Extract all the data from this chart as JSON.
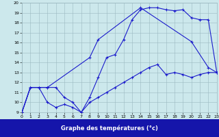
{
  "xlabel": "Graphe des températures (°c)",
  "bg_color": "#cce8ec",
  "grid_color": "#9ab8c0",
  "line_color": "#1a1acc",
  "label_bg": "#1515aa",
  "label_fg": "#ffffff",
  "xlim": [
    0,
    23
  ],
  "ylim": [
    9,
    20
  ],
  "xticks": [
    0,
    1,
    2,
    3,
    4,
    5,
    6,
    7,
    8,
    9,
    10,
    11,
    12,
    13,
    14,
    15,
    16,
    17,
    18,
    19,
    20,
    21,
    22,
    23
  ],
  "yticks": [
    9,
    10,
    11,
    12,
    13,
    14,
    15,
    16,
    17,
    18,
    19,
    20
  ],
  "series1_x": [
    0,
    1,
    2,
    3,
    4,
    5,
    6,
    7,
    8,
    9,
    10,
    11,
    12,
    13,
    14,
    15,
    16,
    17,
    18,
    19,
    20,
    21,
    22,
    23
  ],
  "series1_y": [
    9.0,
    11.5,
    11.5,
    10.0,
    9.5,
    9.8,
    9.5,
    9.0,
    10.0,
    10.5,
    11.0,
    11.5,
    12.0,
    12.5,
    13.0,
    13.5,
    13.8,
    12.8,
    13.0,
    12.8,
    12.5,
    12.8,
    13.0,
    13.0
  ],
  "series2_x": [
    0,
    1,
    2,
    3,
    4,
    5,
    6,
    7,
    8,
    9,
    10,
    11,
    12,
    13,
    14,
    15,
    16,
    17,
    18,
    19,
    20,
    21,
    22,
    23
  ],
  "series2_y": [
    9.0,
    11.5,
    11.5,
    11.5,
    11.5,
    10.5,
    10.0,
    9.0,
    10.5,
    12.5,
    14.5,
    14.8,
    16.3,
    18.3,
    19.3,
    19.5,
    19.5,
    19.3,
    19.2,
    19.3,
    18.5,
    18.3,
    18.3,
    13.0
  ],
  "series3_x": [
    0,
    1,
    3,
    8,
    9,
    14,
    20,
    22,
    23
  ],
  "series3_y": [
    9.0,
    11.5,
    11.5,
    14.5,
    16.3,
    19.5,
    16.1,
    13.5,
    13.0
  ]
}
